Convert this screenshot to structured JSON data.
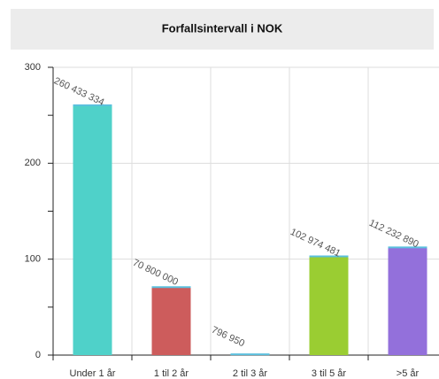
{
  "chart_data": {
    "type": "bar",
    "title": "Forfallsintervall i NOK",
    "categories": [
      "Under 1 år",
      "1 til 2 år",
      "2 til 3 år",
      "3 til 5 år",
      ">5 år"
    ],
    "values": [
      260.433334,
      70.8,
      0.79695,
      102.974481,
      112.23289
    ],
    "value_labels": [
      "260 433 334",
      "70 800 000",
      "796 950",
      "102 974 481",
      "112 232 890"
    ],
    "colors": [
      "#4fd1c9",
      "#cd5c5c",
      "#5bc0de",
      "#9acd32",
      "#9370db"
    ],
    "ylim": [
      0,
      300
    ],
    "yticks": [
      0,
      100,
      200,
      300
    ],
    "grid": true
  }
}
